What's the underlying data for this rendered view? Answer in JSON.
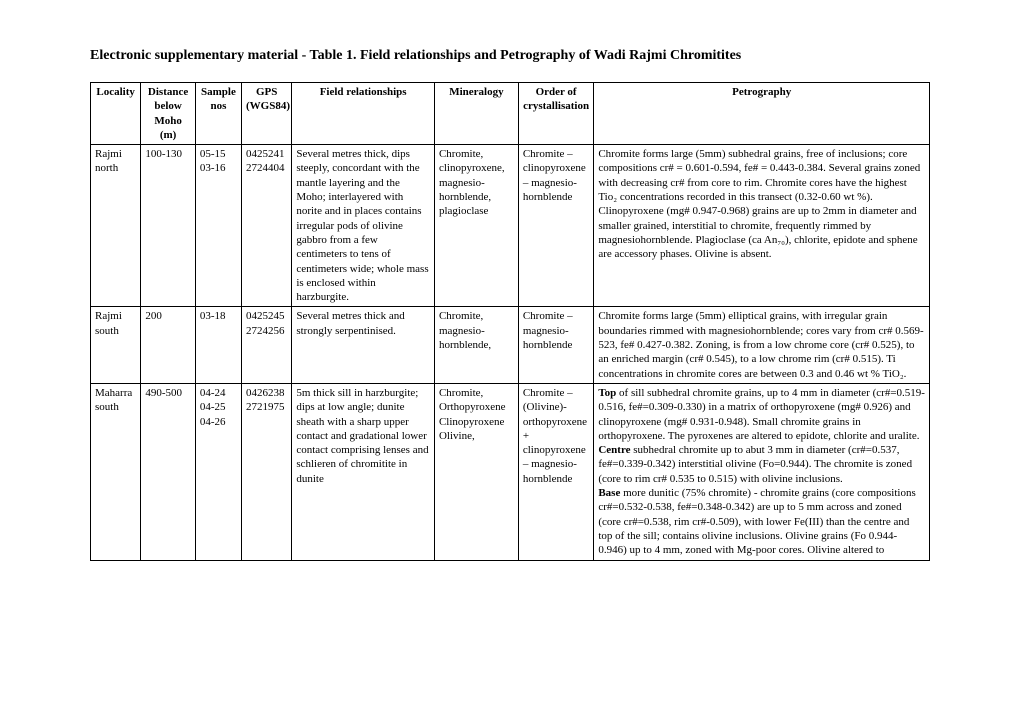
{
  "title": "Electronic supplementary material - Table 1. Field relationships and Petrography of Wadi Rajmi Chromitites",
  "columns": [
    "Locality",
    "Distance below Moho (m)",
    "Sample nos",
    "GPS (WGS84)",
    "Field relationships",
    "Mineralogy",
    "Order of crystallisation",
    "Petrography"
  ],
  "rows": [
    {
      "locality": "Rajmi north",
      "distance": "100-130",
      "sample": "05-15\n03-16",
      "gps": "0425241\n2724404",
      "field": "Several metres thick, dips steeply, concordant with the mantle layering and the Moho; interlayered with norite and in places contains irregular pods of olivine gabbro from a few centimeters to tens of centimeters wide; whole mass is enclosed within harzburgite.",
      "mineral": "Chromite, clinopyroxene, magnesio-hornblende, plagioclase",
      "order": "Chromite – clinopyroxene – magnesio-hornblende",
      "petro": "Chromite forms large (5mm) subhedral grains, free of inclusions; core compositions cr# = 0.601-0.594, fe# = 0.443-0.384. Several grains zoned with decreasing cr# from core to rim. Chromite cores have the highest Tio₂ concentrations recorded in this transect (0.32-0.60 wt %). Clinopyroxene (mg# 0.947-0.968) grains are up to 2mm in diameter and smaller grained, interstitial to chromite, frequently rimmed by magnesiohornblende. Plagioclase (ca An₇₀), chlorite, epidote and sphene are accessory phases. Olivine is absent."
    },
    {
      "locality": "Rajmi south",
      "distance": "200",
      "sample": "03-18",
      "gps": "0425245\n2724256",
      "field": "Several metres thick and strongly serpentinised.",
      "mineral": "Chromite, magnesio-hornblende,",
      "order": "Chromite – magnesio-hornblende",
      "petro": "Chromite forms large (5mm) elliptical grains, with irregular grain boundaries rimmed with magnesiohornblende; cores vary from cr# 0.569-523, fe# 0.427-0.382. Zoning, is from a low chrome core (cr# 0.525), to an enriched margin (cr# 0.545), to a low chrome rim (cr# 0.515). Ti concentrations in chromite cores are between 0.3 and 0.46 wt % TiO₂."
    },
    {
      "locality": "Maharra south",
      "distance": "490-500",
      "sample": "04-24\n04-25\n04-26",
      "gps": "0426238\n2721975",
      "field": "5m thick sill in harzburgite; dips at low angle;  dunite sheath with a sharp upper contact and gradational lower contact comprising lenses and schlieren of chromitite in dunite",
      "mineral": "Chromite, Orthopyroxene Clinopyroxene Olivine,",
      "order": "Chromite – (Olivine)-orthopyroxene + clinopyroxene – magnesio-hornblende",
      "petro_top": "Top",
      "petro_top_rest": " of sill subhedral chromite grains, up to 4 mm in diameter (cr#=0.519-0.516, fe#=0.309-0.330)  in a matrix of orthopyroxene (mg# 0.926) and clinopyroxene (mg# 0.931-0.948). Small chromite grains in orthopyroxene. The pyroxenes are altered to epidote, chlorite and uralite.",
      "petro_centre": "Centre",
      "petro_centre_rest": " subhedral chromite up to abut 3 mm in diameter (cr#=0.537, fe#=0.339-0.342)  interstitial olivine (Fo=0.944). The chromite is zoned (core to rim cr# 0.535 to 0.515) with olivine inclusions.",
      "petro_base": "Base",
      "petro_base_rest": " more dunitic (75% chromite) - chromite grains (core compositions cr#=0.532-0.538, fe#=0.348-0.342) are up to 5 mm across and zoned (core cr#=0.538, rim cr#-0.509), with lower Fe(III) than the centre and top of the sill; contains olivine inclusions. Olivine grains (Fo 0.944-0.946) up to 4 mm, zoned with Mg-poor cores. Olivine altered to"
    }
  ]
}
